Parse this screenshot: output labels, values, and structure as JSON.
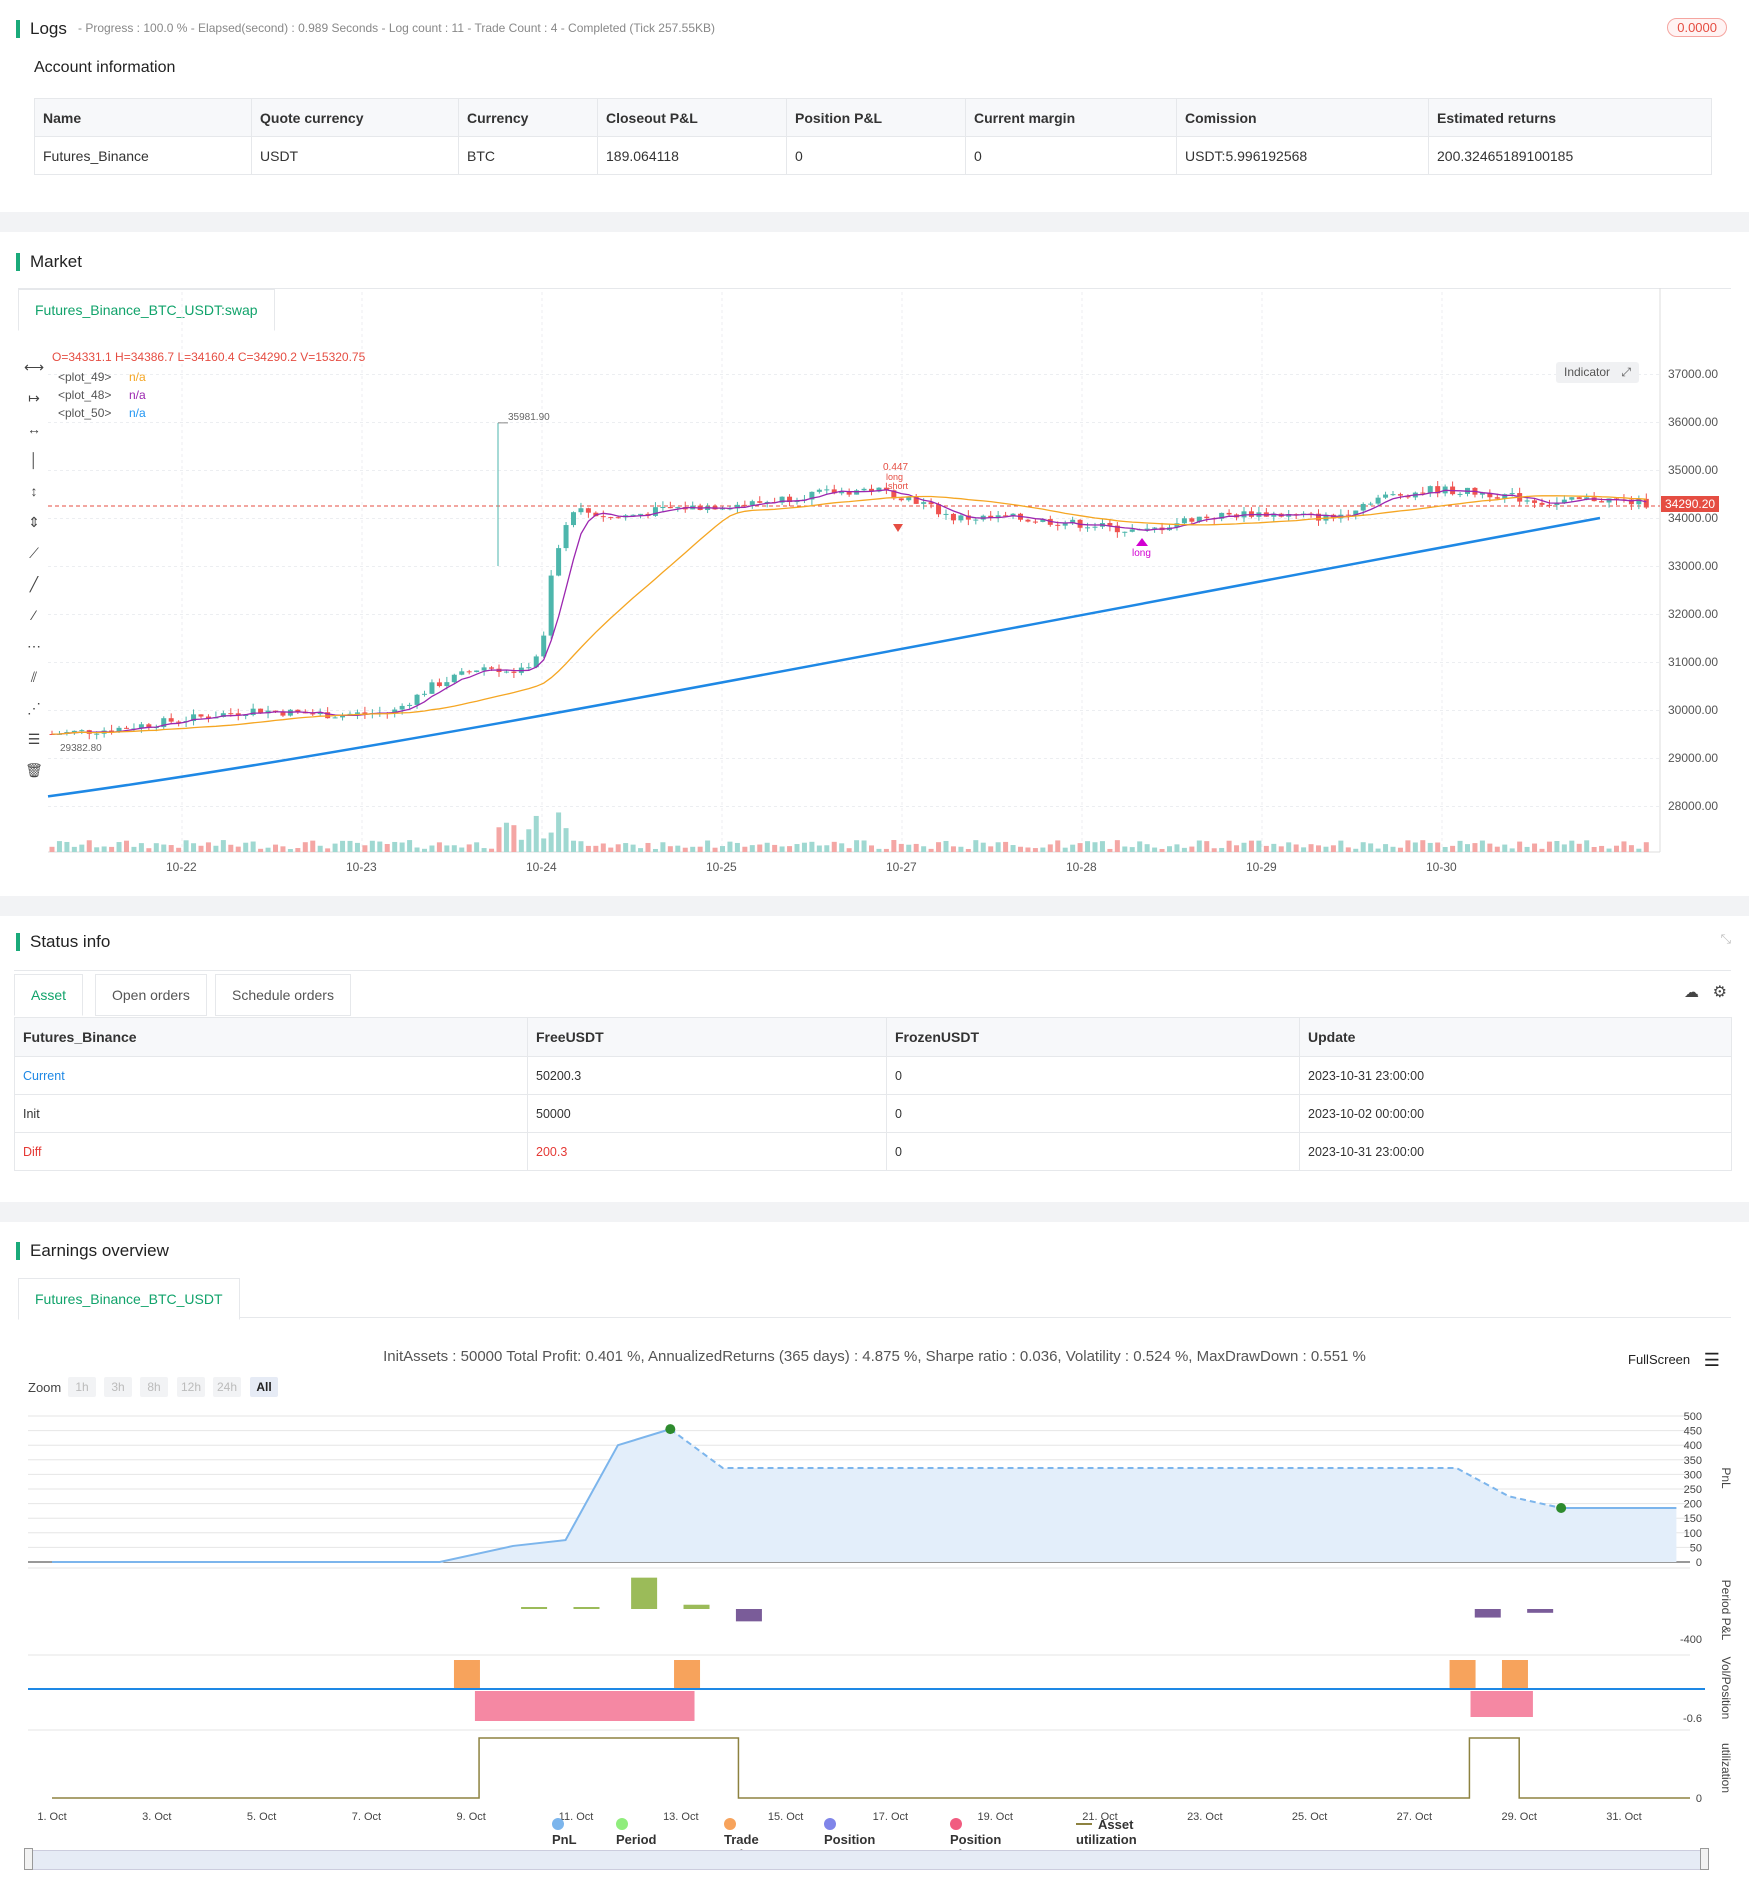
{
  "logs": {
    "title": "Logs",
    "summary": "- Progress : 100.0 % - Elapsed(second) : 0.989  Seconds - Log count : 11 - Trade Count : 4 - Completed (Tick 257.55KB)",
    "badge": "0.0000"
  },
  "account": {
    "title": "Account information",
    "headers": [
      "Name",
      "Quote currency",
      "Currency",
      "Closeout P&L",
      "Position P&L",
      "Current margin",
      "Comission",
      "Estimated returns"
    ],
    "row": [
      "Futures_Binance",
      "USDT",
      "BTC",
      "189.064118",
      "0",
      "0",
      "USDT:5.996192568",
      "200.32465189100185"
    ]
  },
  "market": {
    "title": "Market",
    "tab": "Futures_Binance_BTC_USDT:swap",
    "ohlc": "O=34331.1 H=34386.7 L=34160.4 C=34290.2 V=15320.75",
    "plots": [
      {
        "name": "<plot_49>",
        "value": "n/a",
        "color": "#f5a623"
      },
      {
        "name": "<plot_48>",
        "value": "n/a",
        "color": "#9c27b0"
      },
      {
        "name": "<plot_50>",
        "value": "n/a",
        "color": "#2196f3"
      }
    ],
    "indicator_btn": "Indicator",
    "price_labels": [
      "37000.00",
      "36000.00",
      "35000.00",
      "34000.00",
      "33000.00",
      "32000.00",
      "31000.00",
      "30000.00",
      "29000.00",
      "28000.00"
    ],
    "price_values": [
      37000,
      36000,
      35000,
      34000,
      33000,
      32000,
      31000,
      30000,
      29000,
      28000
    ],
    "last_price": "34290.20",
    "high_label": "35981.90",
    "low_label": "29382.80",
    "date_labels": [
      "10-22",
      "10-23",
      "10-24",
      "10-25",
      "10-27",
      "10-28",
      "10-29",
      "10-30"
    ],
    "signal_short_value": "0.447",
    "signal_short_l1": "long",
    "signal_short_l2": "short",
    "signal_long": "long"
  },
  "status": {
    "title": "Status info",
    "tabs": [
      "Asset",
      "Open orders",
      "Schedule orders"
    ],
    "headers": [
      "Futures_Binance",
      "FreeUSDT",
      "FrozenUSDT",
      "Update"
    ],
    "rows": [
      [
        "Current",
        "50200.3",
        "0",
        "2023-10-31 23:00:00"
      ],
      [
        "Init",
        "50000",
        "0",
        "2023-10-02 00:00:00"
      ],
      [
        "Diff",
        "200.3",
        "0",
        "2023-10-31 23:00:00"
      ]
    ]
  },
  "earnings": {
    "title": "Earnings overview",
    "tab": "Futures_Binance_BTC_USDT",
    "summary": "InitAssets : 50000 Total Profit: 0.401 %, AnnualizedReturns (365 days) : 4.875 %, Sharpe ratio : 0.036, Volatility : 0.524 %, MaxDrawDown : 0.551 %",
    "fullscreen": "FullScreen",
    "zoom_label": "Zoom",
    "zoom_buttons": [
      "1h",
      "3h",
      "8h",
      "12h",
      "24h",
      "All"
    ],
    "pnl_axis": [
      "500",
      "450",
      "400",
      "350",
      "300",
      "250",
      "200",
      "150",
      "100",
      "50",
      "0"
    ],
    "period_axis": "-400",
    "vol_axis": "-0.6",
    "util_axis": "0",
    "axis_titles": [
      "PnL",
      "Period P&L",
      "Vol/Position",
      "utilization"
    ],
    "date_labels": [
      "1. Oct",
      "3. Oct",
      "5. Oct",
      "7. Oct",
      "9. Oct",
      "11. Oct",
      "13. Oct",
      "15. Oct",
      "17. Oct",
      "19. Oct",
      "21. Oct",
      "23. Oct",
      "25. Oct",
      "27. Oct",
      "29. Oct",
      "31. Oct"
    ],
    "legend": [
      {
        "label": "PnL",
        "color": "#7cb5ec"
      },
      {
        "label": "Period P&L",
        "color": "#90ed7d"
      },
      {
        "label": "Trade Vol",
        "color": "#f7a35c"
      },
      {
        "label": "Position Long",
        "color": "#8085e9"
      },
      {
        "label": "Position Short",
        "color": "#f15c80"
      },
      {
        "label": "Asset utilization",
        "color": "#8d8240"
      }
    ]
  },
  "chart_data": [
    {
      "type": "line",
      "title": "",
      "ylabel": "PnL",
      "x": [
        "1. Oct",
        "9. Oct",
        "10. Oct",
        "11. Oct",
        "12. Oct",
        "13. Oct",
        "14. Oct",
        "27. Oct",
        "28. Oct",
        "29. Oct",
        "31. Oct"
      ],
      "values": [
        0,
        0,
        55,
        75,
        400,
        455,
        322,
        322,
        225,
        185,
        185
      ],
      "ylim": [
        0,
        500
      ]
    },
    {
      "type": "bar",
      "ylabel": "Period P&L",
      "categories": [
        "10. Oct",
        "11. Oct",
        "12. Oct",
        "13. Oct",
        "14. Oct",
        "28. Oct",
        "29. Oct"
      ],
      "values": [
        20,
        10,
        330,
        45,
        -130,
        -90,
        -40
      ]
    }
  ]
}
